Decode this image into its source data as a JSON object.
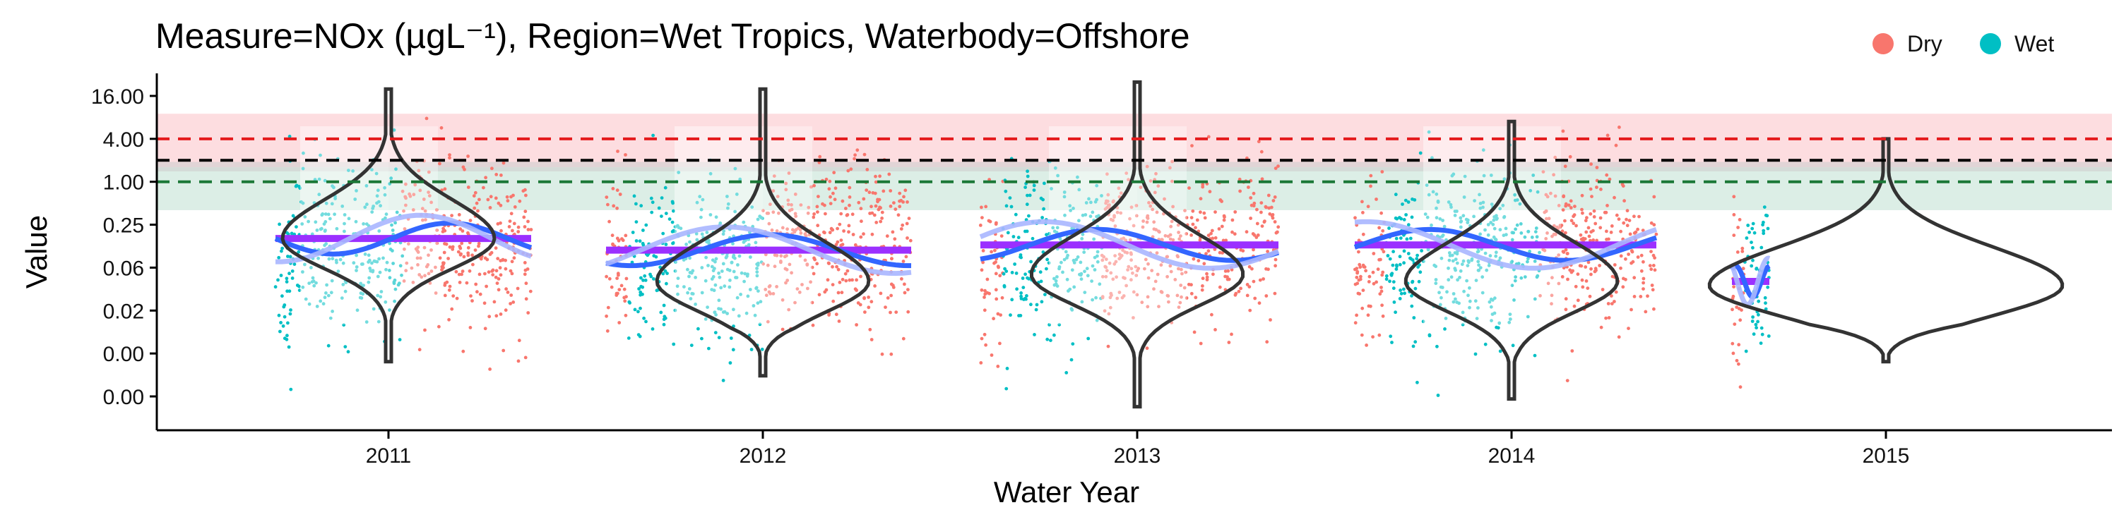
{
  "chart_data": {
    "type": "scatter",
    "title": "Measure=NOx (µgL⁻¹), Region=Wet Tropics, Waterbody=Offshore",
    "xlabel": "Water Year",
    "ylabel": "Value",
    "y_scale": "log2",
    "categories": [
      "2011",
      "2012",
      "2013",
      "2014",
      "2015"
    ],
    "y_tick_labels": [
      "16.00",
      "4.00",
      "1.00",
      "0.25",
      "0.06",
      "0.02",
      "0.00",
      "0.00"
    ],
    "y_tick_values": [
      16,
      4,
      1,
      0.25,
      0.0625,
      0.015625,
      0.00390625,
      0.0009765625
    ],
    "ylim": [
      0.0005,
      32
    ],
    "grid": false,
    "legend": {
      "position": "top-right",
      "entries": [
        {
          "label": "Dry",
          "color": "#F8766D"
        },
        {
          "label": "Wet",
          "color": "#00BFC4"
        }
      ]
    },
    "reference_lines": [
      {
        "value": 4,
        "style": "dashed",
        "color": "#E41A1C",
        "band": [
          1.6,
          9
        ]
      },
      {
        "value": 2,
        "style": "dashed",
        "color": "#000000"
      },
      {
        "value": 1,
        "style": "dashed",
        "color": "#1B7837",
        "band": [
          0.4,
          1.6
        ]
      }
    ],
    "series": [
      {
        "name": "Dry",
        "color": "#F8766D"
      },
      {
        "name": "Wet",
        "color": "#00BFC4"
      }
    ],
    "years": [
      {
        "year": "2011",
        "median": 0.16,
        "violin": {
          "min": 0.003,
          "max": 20,
          "mode": 0.16
        }
      },
      {
        "year": "2012",
        "median": 0.11,
        "violin": {
          "min": 0.0019,
          "max": 20,
          "mode": 0.04
        }
      },
      {
        "year": "2013",
        "median": 0.13,
        "violin": {
          "min": 0.0007,
          "max": 25,
          "mode": 0.05
        }
      },
      {
        "year": "2014",
        "median": 0.13,
        "violin": {
          "min": 0.0009,
          "max": 7,
          "mode": 0.04
        }
      },
      {
        "year": "2015",
        "median": 0.04,
        "violin": {
          "min": 0.003,
          "max": 4,
          "mode": 0.035
        }
      }
    ]
  }
}
